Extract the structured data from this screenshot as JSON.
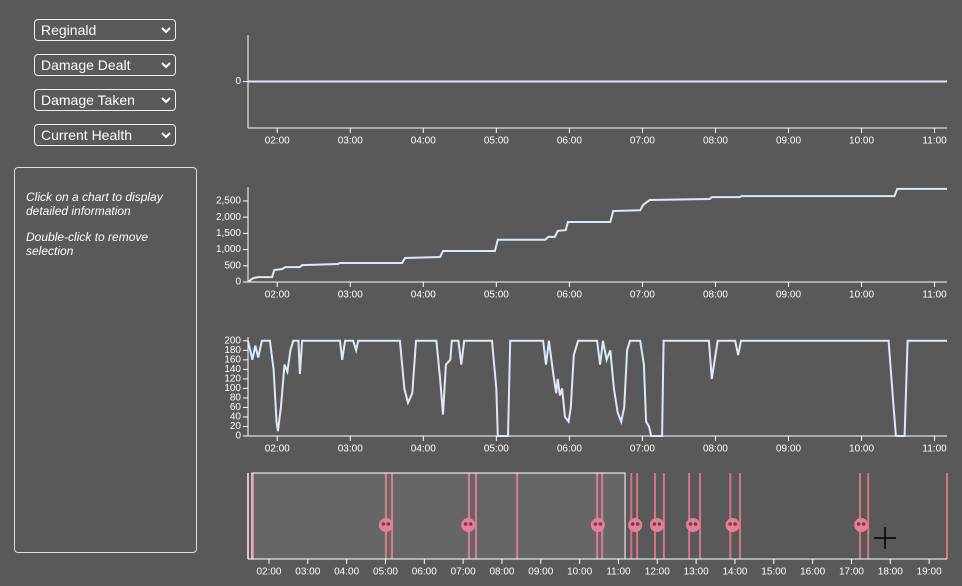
{
  "controls": [
    "Reginald",
    "Damage Dealt",
    "Damage Taken",
    "Current Health"
  ],
  "info": [
    "Click on a chart to display detailed information",
    "Double-click to remove selection"
  ],
  "time_axis": {
    "xlim": [
      1.6,
      11.17
    ],
    "xticks": [
      {
        "value": 2,
        "label": "02:00"
      },
      {
        "value": 3,
        "label": "03:00"
      },
      {
        "value": 4,
        "label": "04:00"
      },
      {
        "value": 5,
        "label": "05:00"
      },
      {
        "value": 6,
        "label": "06:00"
      },
      {
        "value": 7,
        "label": "07:00"
      },
      {
        "value": 8,
        "label": "08:00"
      },
      {
        "value": 9,
        "label": "09:00"
      },
      {
        "value": 10,
        "label": "10:00"
      },
      {
        "value": 11,
        "label": "11:00"
      }
    ]
  },
  "chart_data": [
    {
      "type": "line",
      "ylim": [
        -1,
        1
      ],
      "yticks": [
        0
      ],
      "color": "#dce9f7",
      "series": [
        {
          "x": [
            1.6,
            11.17
          ],
          "values": [
            0,
            0
          ]
        }
      ]
    },
    {
      "type": "line",
      "ylim": [
        0,
        2930
      ],
      "color": "#dce9f7",
      "yticks": [
        0,
        500,
        {
          "value": 1000,
          "label": "1,000"
        },
        {
          "value": 1500,
          "label": "1,500"
        },
        {
          "value": 2000,
          "label": "2,000"
        },
        {
          "value": 2500,
          "label": "2,500"
        }
      ],
      "series": [
        {
          "x": [
            1.6,
            1.67,
            1.74,
            1.93,
            1.96,
            2.07,
            2.11,
            2.31,
            2.34,
            2.83,
            2.86,
            3.71,
            3.75,
            4.23,
            4.27,
            4.98,
            5.02,
            5.67,
            5.71,
            5.8,
            5.84,
            5.95,
            5.98,
            6.56,
            6.6,
            6.97,
            7.01,
            7.1,
            7.92,
            7.95,
            8.33,
            8.36,
            10.45,
            10.49,
            11.17
          ],
          "values": [
            0,
            120,
            150,
            150,
            370,
            400,
            460,
            460,
            520,
            555,
            585,
            585,
            740,
            770,
            955,
            955,
            1300,
            1300,
            1390,
            1390,
            1575,
            1600,
            1850,
            1850,
            2190,
            2210,
            2380,
            2530,
            2560,
            2620,
            2620,
            2650,
            2650,
            2870,
            2870
          ]
        }
      ]
    },
    {
      "type": "line",
      "ylim": [
        0,
        208
      ],
      "color": "#dce9f7",
      "yticks": [
        0,
        20,
        40,
        60,
        80,
        100,
        120,
        140,
        160,
        180,
        200
      ],
      "series": [
        {
          "x": [
            1.6,
            1.66,
            1.7,
            1.74,
            1.79,
            1.9,
            1.95,
            1.99,
            2.01,
            2.05,
            2.1,
            2.14,
            2.18,
            2.22,
            2.29,
            2.31,
            2.34,
            2.86,
            2.89,
            2.93,
            3.04,
            3.08,
            3.11,
            3.68,
            3.74,
            3.79,
            3.85,
            3.9,
            4.18,
            4.23,
            4.27,
            4.31,
            4.37,
            4.39,
            4.48,
            4.52,
            4.56,
            4.94,
            5.0,
            5.02,
            5.16,
            5.19,
            5.64,
            5.68,
            5.72,
            5.78,
            5.82,
            5.84,
            5.87,
            5.9,
            5.94,
            5.99,
            6.02,
            6.06,
            6.12,
            6.38,
            6.42,
            6.46,
            6.51,
            6.56,
            6.61,
            6.66,
            6.71,
            6.75,
            6.79,
            6.83,
            6.97,
            7.02,
            7.05,
            7.09,
            7.12,
            7.27,
            7.29,
            7.91,
            7.95,
            7.99,
            8.03,
            8.27,
            8.31,
            8.35,
            10.37,
            10.43,
            10.47,
            10.59,
            10.63,
            11.17
          ],
          "values": [
            200,
            160,
            190,
            165,
            200,
            200,
            140,
            30,
            10,
            60,
            150,
            135,
            180,
            200,
            200,
            130,
            200,
            200,
            160,
            200,
            200,
            180,
            200,
            200,
            100,
            70,
            90,
            200,
            200,
            120,
            45,
            150,
            160,
            200,
            200,
            150,
            200,
            200,
            100,
            0,
            0,
            200,
            200,
            150,
            200,
            130,
            90,
            120,
            85,
            100,
            40,
            30,
            60,
            170,
            200,
            200,
            150,
            200,
            160,
            180,
            100,
            50,
            30,
            60,
            180,
            200,
            200,
            150,
            30,
            20,
            0,
            0,
            200,
            200,
            120,
            160,
            200,
            200,
            170,
            200,
            200,
            80,
            0,
            0,
            200,
            200
          ]
        }
      ]
    },
    {
      "type": "timeline",
      "xlim": [
        1.46,
        19.46
      ],
      "xticks": [
        {
          "value": 2,
          "label": "02:00"
        },
        {
          "value": 3,
          "label": "03:00"
        },
        {
          "value": 4,
          "label": "04:00"
        },
        {
          "value": 5,
          "label": "05:00"
        },
        {
          "value": 6,
          "label": "06:00"
        },
        {
          "value": 7,
          "label": "07:00"
        },
        {
          "value": 8,
          "label": "08:00"
        },
        {
          "value": 9,
          "label": "09:00"
        },
        {
          "value": 10,
          "label": "10:00"
        },
        {
          "value": 11,
          "label": "11:00"
        },
        {
          "value": 12,
          "label": "12:00"
        },
        {
          "value": 13,
          "label": "13:00"
        },
        {
          "value": 14,
          "label": "14:00"
        },
        {
          "value": 15,
          "label": "15:00"
        },
        {
          "value": 16,
          "label": "16:00"
        },
        {
          "value": 17,
          "label": "17:00"
        },
        {
          "value": 18,
          "label": "18:00"
        },
        {
          "value": 19,
          "label": "19:00"
        }
      ],
      "events": {
        "color": "#d9738a",
        "x": [
          1.46,
          1.59,
          5.01,
          5.17,
          7.15,
          7.33,
          8.39,
          10.45,
          10.58,
          11.33,
          11.48,
          11.94,
          12.17,
          12.82,
          13.1,
          13.88,
          14.13,
          17.22,
          17.43,
          19.46
        ]
      },
      "deaths": {
        "color": "#e2809a",
        "x": [
          5.01,
          7.13,
          10.47,
          11.43,
          11.99,
          12.92,
          13.94,
          17.25
        ]
      },
      "selection": [
        1.56,
        11.17
      ]
    }
  ]
}
